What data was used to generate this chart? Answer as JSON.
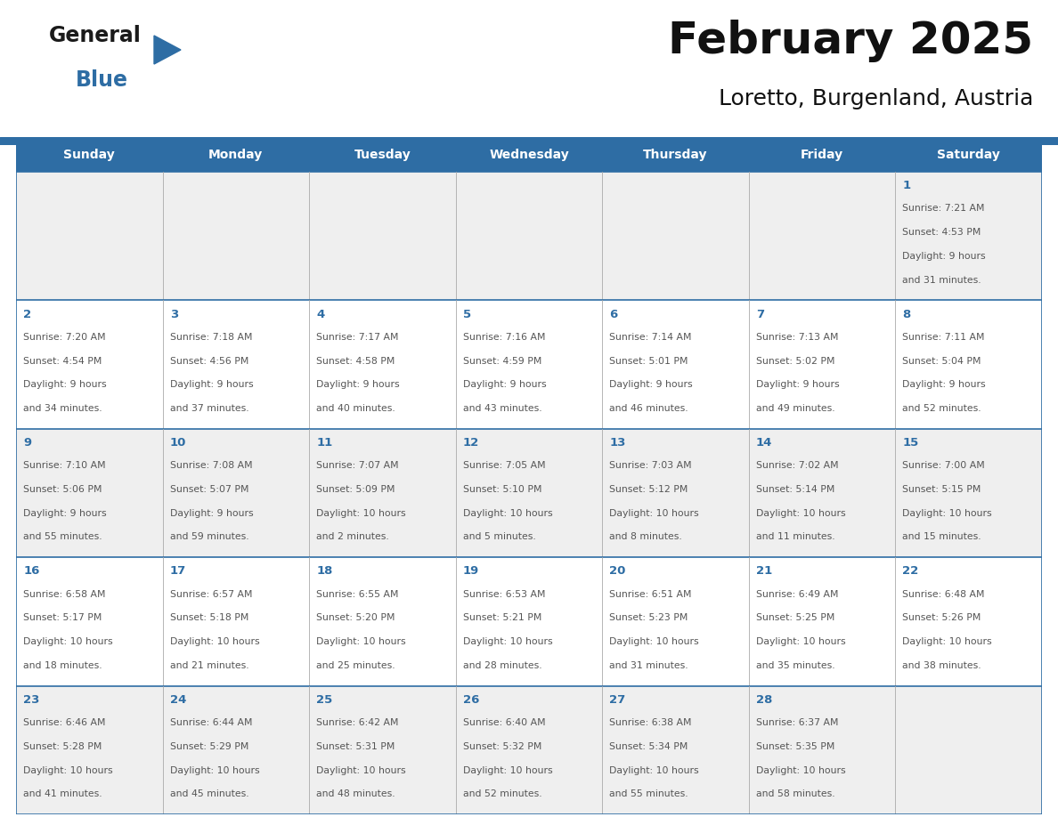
{
  "title": "February 2025",
  "subtitle": "Loretto, Burgenland, Austria",
  "header_color": "#2E6DA4",
  "header_text_color": "#FFFFFF",
  "cell_bg_row0": "#F0F0F0",
  "cell_bg_row1": "#FFFFFF",
  "cell_bg_row2": "#F0F0F0",
  "cell_bg_row3": "#FFFFFF",
  "cell_bg_row4": "#F0F0F0",
  "day_number_color": "#2E6DA4",
  "text_color": "#555555",
  "border_color": "#2E6DA4",
  "days_of_week": [
    "Sunday",
    "Monday",
    "Tuesday",
    "Wednesday",
    "Thursday",
    "Friday",
    "Saturday"
  ],
  "calendar_data": [
    [
      null,
      null,
      null,
      null,
      null,
      null,
      {
        "day": "1",
        "sunrise": "7:21 AM",
        "sunset": "4:53 PM",
        "daylight_l1": "Daylight: 9 hours",
        "daylight_l2": "and 31 minutes."
      }
    ],
    [
      {
        "day": "2",
        "sunrise": "7:20 AM",
        "sunset": "4:54 PM",
        "daylight_l1": "Daylight: 9 hours",
        "daylight_l2": "and 34 minutes."
      },
      {
        "day": "3",
        "sunrise": "7:18 AM",
        "sunset": "4:56 PM",
        "daylight_l1": "Daylight: 9 hours",
        "daylight_l2": "and 37 minutes."
      },
      {
        "day": "4",
        "sunrise": "7:17 AM",
        "sunset": "4:58 PM",
        "daylight_l1": "Daylight: 9 hours",
        "daylight_l2": "and 40 minutes."
      },
      {
        "day": "5",
        "sunrise": "7:16 AM",
        "sunset": "4:59 PM",
        "daylight_l1": "Daylight: 9 hours",
        "daylight_l2": "and 43 minutes."
      },
      {
        "day": "6",
        "sunrise": "7:14 AM",
        "sunset": "5:01 PM",
        "daylight_l1": "Daylight: 9 hours",
        "daylight_l2": "and 46 minutes."
      },
      {
        "day": "7",
        "sunrise": "7:13 AM",
        "sunset": "5:02 PM",
        "daylight_l1": "Daylight: 9 hours",
        "daylight_l2": "and 49 minutes."
      },
      {
        "day": "8",
        "sunrise": "7:11 AM",
        "sunset": "5:04 PM",
        "daylight_l1": "Daylight: 9 hours",
        "daylight_l2": "and 52 minutes."
      }
    ],
    [
      {
        "day": "9",
        "sunrise": "7:10 AM",
        "sunset": "5:06 PM",
        "daylight_l1": "Daylight: 9 hours",
        "daylight_l2": "and 55 minutes."
      },
      {
        "day": "10",
        "sunrise": "7:08 AM",
        "sunset": "5:07 PM",
        "daylight_l1": "Daylight: 9 hours",
        "daylight_l2": "and 59 minutes."
      },
      {
        "day": "11",
        "sunrise": "7:07 AM",
        "sunset": "5:09 PM",
        "daylight_l1": "Daylight: 10 hours",
        "daylight_l2": "and 2 minutes."
      },
      {
        "day": "12",
        "sunrise": "7:05 AM",
        "sunset": "5:10 PM",
        "daylight_l1": "Daylight: 10 hours",
        "daylight_l2": "and 5 minutes."
      },
      {
        "day": "13",
        "sunrise": "7:03 AM",
        "sunset": "5:12 PM",
        "daylight_l1": "Daylight: 10 hours",
        "daylight_l2": "and 8 minutes."
      },
      {
        "day": "14",
        "sunrise": "7:02 AM",
        "sunset": "5:14 PM",
        "daylight_l1": "Daylight: 10 hours",
        "daylight_l2": "and 11 minutes."
      },
      {
        "day": "15",
        "sunrise": "7:00 AM",
        "sunset": "5:15 PM",
        "daylight_l1": "Daylight: 10 hours",
        "daylight_l2": "and 15 minutes."
      }
    ],
    [
      {
        "day": "16",
        "sunrise": "6:58 AM",
        "sunset": "5:17 PM",
        "daylight_l1": "Daylight: 10 hours",
        "daylight_l2": "and 18 minutes."
      },
      {
        "day": "17",
        "sunrise": "6:57 AM",
        "sunset": "5:18 PM",
        "daylight_l1": "Daylight: 10 hours",
        "daylight_l2": "and 21 minutes."
      },
      {
        "day": "18",
        "sunrise": "6:55 AM",
        "sunset": "5:20 PM",
        "daylight_l1": "Daylight: 10 hours",
        "daylight_l2": "and 25 minutes."
      },
      {
        "day": "19",
        "sunrise": "6:53 AM",
        "sunset": "5:21 PM",
        "daylight_l1": "Daylight: 10 hours",
        "daylight_l2": "and 28 minutes."
      },
      {
        "day": "20",
        "sunrise": "6:51 AM",
        "sunset": "5:23 PM",
        "daylight_l1": "Daylight: 10 hours",
        "daylight_l2": "and 31 minutes."
      },
      {
        "day": "21",
        "sunrise": "6:49 AM",
        "sunset": "5:25 PM",
        "daylight_l1": "Daylight: 10 hours",
        "daylight_l2": "and 35 minutes."
      },
      {
        "day": "22",
        "sunrise": "6:48 AM",
        "sunset": "5:26 PM",
        "daylight_l1": "Daylight: 10 hours",
        "daylight_l2": "and 38 minutes."
      }
    ],
    [
      {
        "day": "23",
        "sunrise": "6:46 AM",
        "sunset": "5:28 PM",
        "daylight_l1": "Daylight: 10 hours",
        "daylight_l2": "and 41 minutes."
      },
      {
        "day": "24",
        "sunrise": "6:44 AM",
        "sunset": "5:29 PM",
        "daylight_l1": "Daylight: 10 hours",
        "daylight_l2": "and 45 minutes."
      },
      {
        "day": "25",
        "sunrise": "6:42 AM",
        "sunset": "5:31 PM",
        "daylight_l1": "Daylight: 10 hours",
        "daylight_l2": "and 48 minutes."
      },
      {
        "day": "26",
        "sunrise": "6:40 AM",
        "sunset": "5:32 PM",
        "daylight_l1": "Daylight: 10 hours",
        "daylight_l2": "and 52 minutes."
      },
      {
        "day": "27",
        "sunrise": "6:38 AM",
        "sunset": "5:34 PM",
        "daylight_l1": "Daylight: 10 hours",
        "daylight_l2": "and 55 minutes."
      },
      {
        "day": "28",
        "sunrise": "6:37 AM",
        "sunset": "5:35 PM",
        "daylight_l1": "Daylight: 10 hours",
        "daylight_l2": "and 58 minutes."
      },
      null
    ]
  ],
  "logo_general_color": "#1a1a1a",
  "logo_blue_color": "#2E6DA4",
  "line_color": "#2E6DA4",
  "row_bg_colors": [
    "#EFEFEF",
    "#FFFFFF",
    "#EFEFEF",
    "#FFFFFF",
    "#EFEFEF"
  ]
}
